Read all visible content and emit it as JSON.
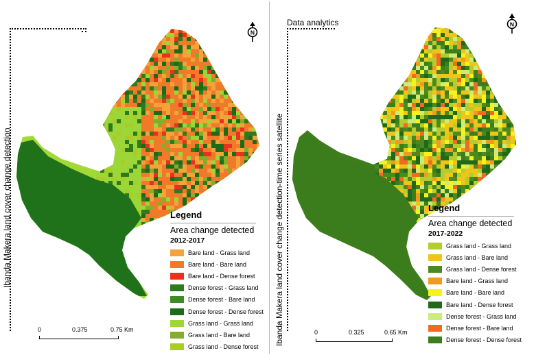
{
  "left": {
    "side_title": "Ibanda Makera land cover change detection",
    "legend": {
      "title": "Legend",
      "subtitle": "Area change detected",
      "period": "2012-2017",
      "items": [
        {
          "label": "Bare land  -  Grass land",
          "color": "#f4a23a"
        },
        {
          "label": "Bare land  - Bare land",
          "color": "#f07a2a"
        },
        {
          "label": "Bare land  - Dense forest",
          "color": "#e8321e"
        },
        {
          "label": "Dense forest  -  Grass land",
          "color": "#2f7a1f"
        },
        {
          "label": "Dense forest  - Bare land",
          "color": "#3f8c27"
        },
        {
          "label": "Dense forest  - Dense forest",
          "color": "#1f6a18"
        },
        {
          "label": "Grass land  -  Grass land",
          "color": "#9cd637"
        },
        {
          "label": "Grass land  - Bare land",
          "color": "#86ad2a"
        },
        {
          "label": "Grass land  - Dense forest",
          "color": "#a9cc2a"
        }
      ]
    },
    "scale": {
      "ticks": [
        "0",
        "0.375",
        "0.75 Km"
      ]
    }
  },
  "right": {
    "top_title": "Data analytics",
    "side_title": "Ibanda Makera land cover change detection-time series satellite",
    "legend": {
      "title": "Legend",
      "subtitle": "Area change detected",
      "period": "2017-2022",
      "items": [
        {
          "label": "Grass land  -  Grass land",
          "color": "#b5cc2f"
        },
        {
          "label": "Grass land  - Bare land",
          "color": "#f0c419"
        },
        {
          "label": "Grass land  - Dense forest",
          "color": "#4d8a1e"
        },
        {
          "label": "Bare land  -  Grass land",
          "color": "#f29a1f"
        },
        {
          "label": "Bare land  - Bare land",
          "color": "#f7f11e"
        },
        {
          "label": "Bare land  - Dense forest",
          "color": "#1e6a1a"
        },
        {
          "label": "Dense forest  -  Grass land",
          "color": "#c9ec7a"
        },
        {
          "label": "Dense forest  - Bare land",
          "color": "#f06a22"
        },
        {
          "label": "Dense forest  - Dense forest",
          "color": "#3e7d1c"
        }
      ]
    },
    "scale": {
      "ticks": [
        "0",
        "0.325",
        "0.65 Km"
      ]
    }
  }
}
